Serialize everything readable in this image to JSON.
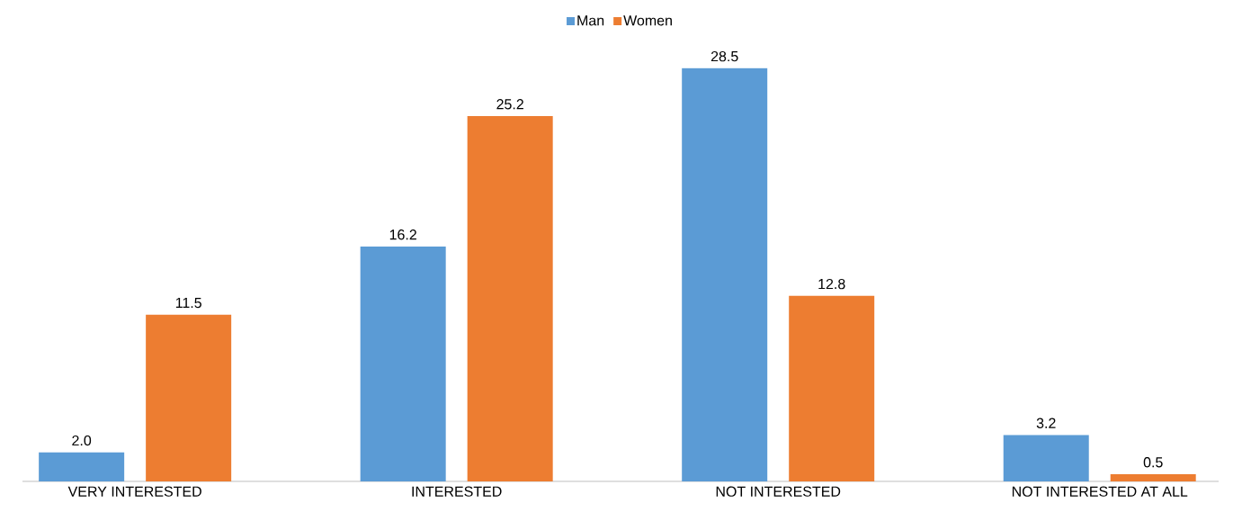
{
  "chart_data": {
    "type": "bar",
    "categories": [
      "VERY INTERESTED",
      "INTERESTED",
      "NOT INTERESTED",
      "NOT INTERESTED AT ALL"
    ],
    "series": [
      {
        "name": "Man",
        "color": "#5b9bd5",
        "values": [
          2.0,
          16.2,
          28.5,
          3.2
        ],
        "value_labels": [
          "2.0",
          "16.2",
          "28.5",
          "3.2"
        ]
      },
      {
        "name": "Women",
        "color": "#ed7d31",
        "values": [
          11.5,
          25.2,
          12.8,
          0.5
        ],
        "value_labels": [
          "11.5",
          "25.2",
          "12.8",
          "0.5"
        ]
      }
    ],
    "legend": "top"
  }
}
